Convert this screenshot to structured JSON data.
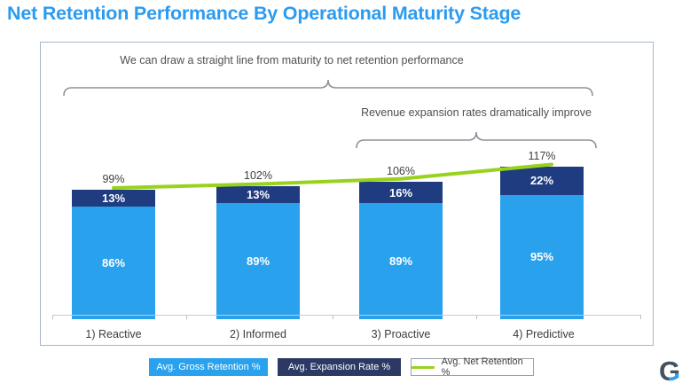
{
  "title": "Net Retention Performance By Operational Maturity Stage",
  "annotations": {
    "maturity_line": "We can draw a straight line from maturity to net retention performance",
    "expansion_improve": "Revenue expansion rates dramatically improve"
  },
  "chart_data": {
    "type": "bar",
    "stacked": true,
    "categories": [
      "1) Reactive",
      "2) Informed",
      "3) Proactive",
      "4) Predictive"
    ],
    "series": [
      {
        "name": "Avg. Gross Retention %",
        "color": "#2AA1EC",
        "values": [
          86,
          89,
          89,
          95
        ],
        "labels": [
          "86%",
          "89%",
          "89%",
          "95%"
        ]
      },
      {
        "name": "Avg. Expansion Rate %",
        "color": "#1E3C7F",
        "values": [
          13,
          13,
          16,
          22
        ],
        "labels": [
          "13%",
          "13%",
          "16%",
          "22%"
        ]
      },
      {
        "name": "Avg. Net Retention %",
        "type": "line",
        "color": "#99D21C",
        "values": [
          99,
          102,
          106,
          117
        ],
        "labels": [
          "99%",
          "102%",
          "106%",
          "117%"
        ]
      }
    ],
    "totals": [
      "99%",
      "102%",
      "106%",
      "117%"
    ],
    "ylim": [
      0,
      130
    ],
    "grid": false,
    "legend_position": "bottom"
  },
  "legend": [
    {
      "label": "Avg. Gross Retention %",
      "swatch": "fill-lightblue"
    },
    {
      "label": "Avg. Expansion Rate %",
      "swatch": "fill-navy"
    },
    {
      "label": "Avg. Net Retention %",
      "swatch": "line-green"
    }
  ],
  "colors": {
    "title": "#2B9BF0",
    "gross_bar": "#2AA1EC",
    "expansion_bar": "#1E3C7F",
    "net_line": "#99D21C",
    "legend_navy": "#2B3964"
  },
  "logo": {
    "text": "G"
  }
}
